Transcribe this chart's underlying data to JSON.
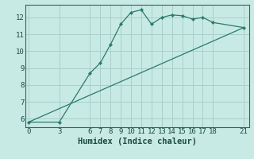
{
  "xlabel": "Humidex (Indice chaleur)",
  "line1_x": [
    0,
    3,
    6,
    7,
    8,
    9,
    10,
    11,
    12,
    13,
    14,
    15,
    16,
    17,
    18,
    21
  ],
  "line1_y": [
    5.8,
    5.8,
    8.7,
    9.3,
    10.4,
    11.6,
    12.3,
    12.45,
    11.6,
    12.0,
    12.15,
    12.1,
    11.9,
    12.0,
    11.7,
    11.4
  ],
  "line2_x": [
    0,
    21
  ],
  "line2_y": [
    5.8,
    11.4
  ],
  "line_color": "#2a7a6a",
  "bg_color": "#c8eae4",
  "grid_color": "#aacfc8",
  "xticks": [
    0,
    3,
    6,
    7,
    8,
    9,
    10,
    11,
    12,
    13,
    14,
    15,
    16,
    17,
    18,
    21
  ],
  "yticks": [
    6,
    7,
    8,
    9,
    10,
    11,
    12
  ],
  "xlim": [
    -0.3,
    21.5
  ],
  "ylim": [
    5.5,
    12.75
  ],
  "tick_fontsize": 6.5,
  "label_fontsize": 7.5
}
